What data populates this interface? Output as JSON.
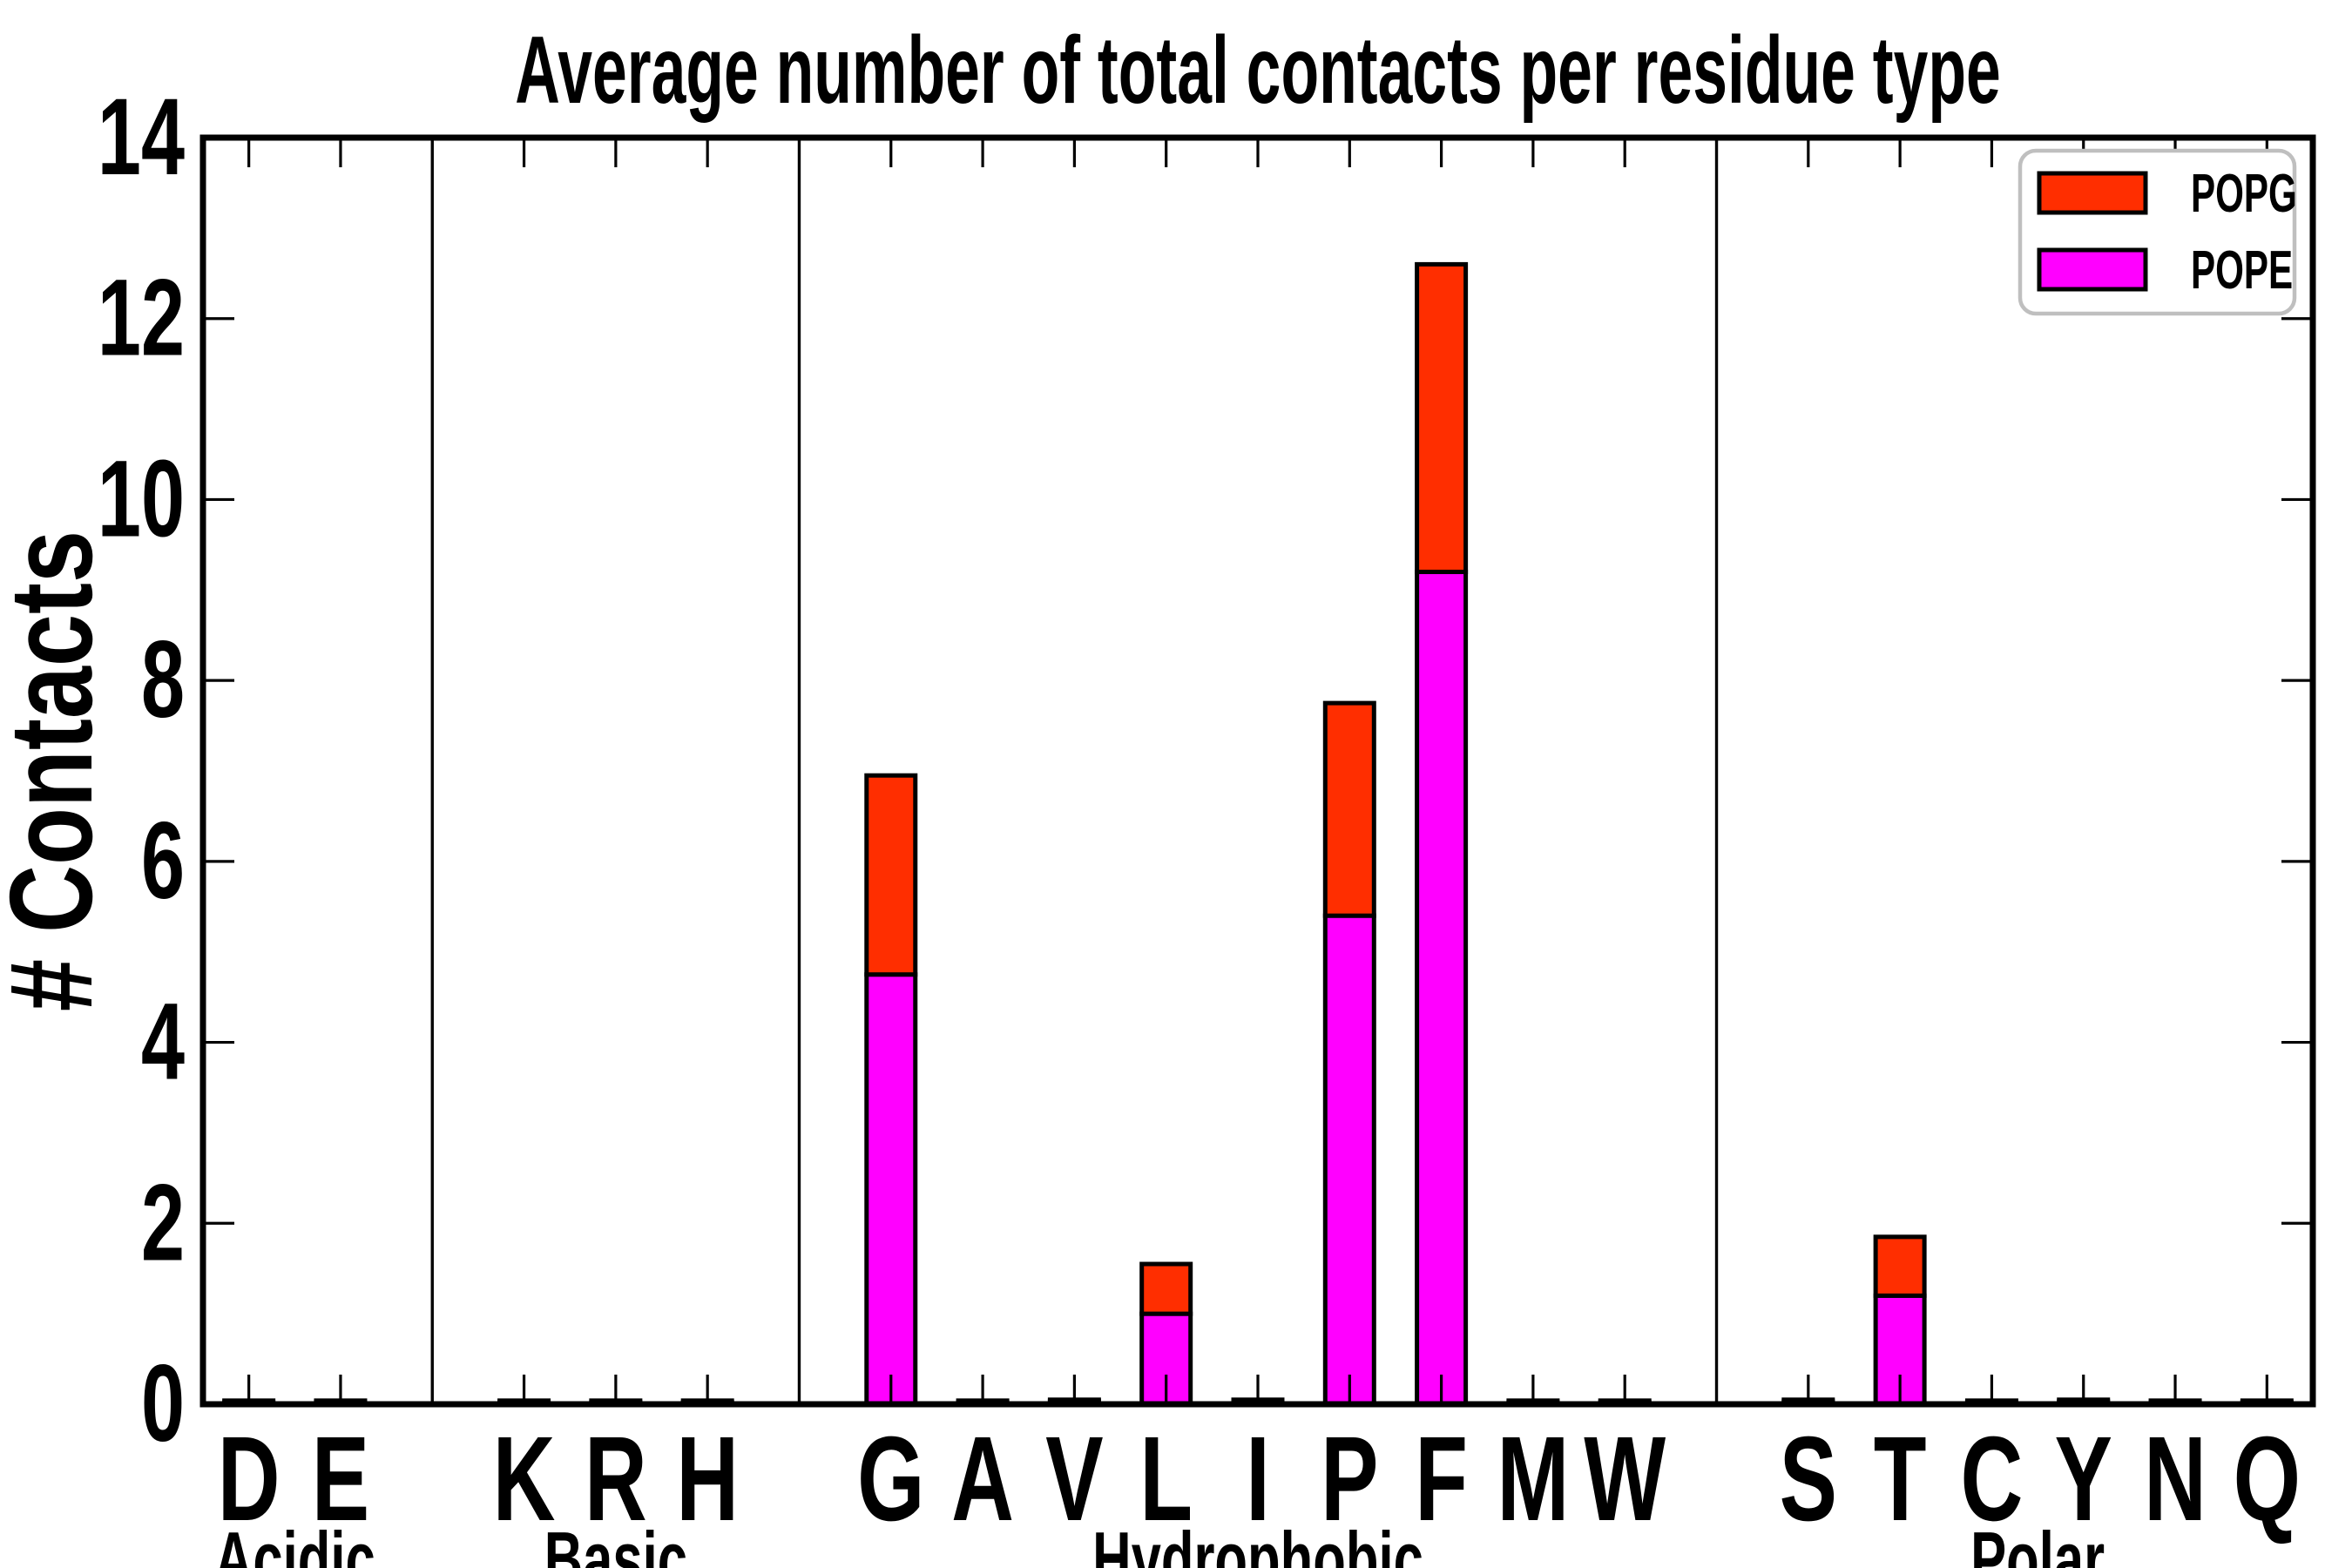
{
  "chart_data": {
    "type": "bar",
    "stacked": true,
    "title": "Average number of total contacts per residue type",
    "ylabel": "# Contacts",
    "xlabel": "",
    "ylim": [
      0,
      14
    ],
    "yticks": [
      0,
      2,
      4,
      6,
      8,
      10,
      12,
      14
    ],
    "grid": false,
    "legend": {
      "position": "upper right",
      "entries": [
        {
          "label": "POPG",
          "color": "#ff2e00"
        },
        {
          "label": "POPE",
          "color": "#ff00ff"
        }
      ]
    },
    "groups": [
      {
        "label": "Acidic",
        "categories": [
          "D",
          "E"
        ]
      },
      {
        "label": "Basic",
        "categories": [
          "K",
          "R",
          "H"
        ]
      },
      {
        "label": "Hydrophobic",
        "categories": [
          "G",
          "A",
          "V",
          "L",
          "I",
          "P",
          "F",
          "M",
          "W"
        ]
      },
      {
        "label": "Polar",
        "categories": [
          "S",
          "T",
          "C",
          "Y",
          "N",
          "Q"
        ]
      }
    ],
    "categories": [
      "D",
      "E",
      "K",
      "R",
      "H",
      "G",
      "A",
      "V",
      "L",
      "I",
      "P",
      "F",
      "M",
      "W",
      "S",
      "T",
      "C",
      "Y",
      "N",
      "Q"
    ],
    "series": [
      {
        "name": "POPE",
        "color": "#ff00ff",
        "values": [
          0.02,
          0.02,
          0.02,
          0.02,
          0.02,
          4.75,
          0.02,
          0.03,
          1.0,
          0.03,
          5.4,
          9.2,
          0.02,
          0.02,
          0.03,
          1.2,
          0.02,
          0.03,
          0.02,
          0.02
        ]
      },
      {
        "name": "POPG",
        "color": "#ff2e00",
        "values": [
          0.02,
          0.02,
          0.02,
          0.02,
          0.02,
          2.2,
          0.02,
          0.02,
          0.55,
          0.02,
          2.35,
          3.4,
          0.02,
          0.02,
          0.02,
          0.65,
          0.02,
          0.02,
          0.02,
          0.02
        ]
      }
    ],
    "colors": {
      "background": "#ffffff",
      "axes": "#000000",
      "legend_border": "#bfbfbf"
    }
  }
}
